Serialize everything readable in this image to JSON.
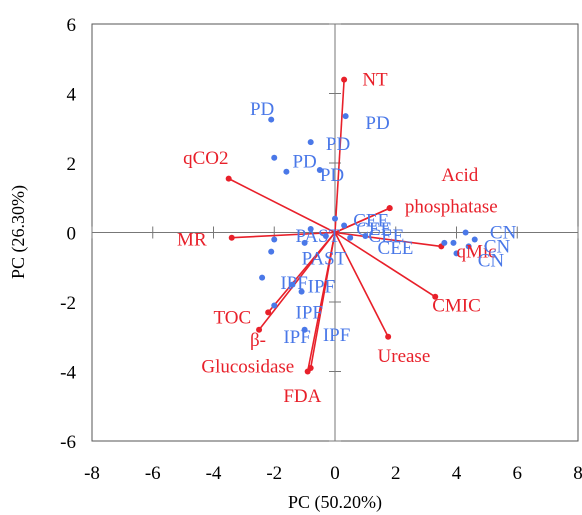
{
  "chart_data": {
    "type": "scatter",
    "subtype": "pca-biplot",
    "xlabel": "PC (50.20%)",
    "ylabel": "PC (26.30%)",
    "xlim": [
      -8,
      8
    ],
    "ylim": [
      -6,
      6
    ],
    "xticks": [
      -8,
      -6,
      -4,
      -2,
      0,
      2,
      4,
      6,
      8
    ],
    "yticks": [
      -6,
      -4,
      -2,
      0,
      2,
      4,
      6
    ],
    "grid": false,
    "colors": {
      "vectors": "#e8202a",
      "points": "#4a78e8"
    },
    "vectors": [
      {
        "name": "NT",
        "x": 0.3,
        "y": 4.4
      },
      {
        "name": "qCO2",
        "x": -3.5,
        "y": 1.55
      },
      {
        "name": "Acid",
        "x": 1.8,
        "y": 0.7
      },
      {
        "name": "phosphatase",
        "x": 1.8,
        "y": 0.7
      },
      {
        "name": "MR",
        "x": -3.4,
        "y": -0.15
      },
      {
        "name": "qMic",
        "x": 3.5,
        "y": -0.4
      },
      {
        "name": "CMIC",
        "x": 3.3,
        "y": -1.85
      },
      {
        "name": "TOC",
        "x": -2.2,
        "y": -2.3
      },
      {
        "name": "β-",
        "x": -2.5,
        "y": -2.8
      },
      {
        "name": "Glucosidase",
        "x": -0.9,
        "y": -4.0
      },
      {
        "name": "Urease",
        "x": 1.75,
        "y": -3.0
      },
      {
        "name": "FDA",
        "x": -0.8,
        "y": -3.9
      }
    ],
    "vector_labels": [
      {
        "text": "NT",
        "x": 0.9,
        "y": 4.4
      },
      {
        "text": "qCO2",
        "x": -5.0,
        "y": 2.15
      },
      {
        "text": "Acid",
        "x": 3.5,
        "y": 1.65
      },
      {
        "text": "phosphatase",
        "x": 2.3,
        "y": 0.75
      },
      {
        "text": "MR",
        "x": -5.2,
        "y": -0.2
      },
      {
        "text": "qMic",
        "x": 4.0,
        "y": -0.55
      },
      {
        "text": "CMIC",
        "x": 3.2,
        "y": -2.1
      },
      {
        "text": "TOC",
        "x": -4.0,
        "y": -2.45
      },
      {
        "text": "β-",
        "x": -2.8,
        "y": -3.1
      },
      {
        "text": "Glucosidase",
        "x": -4.4,
        "y": -3.85
      },
      {
        "text": "Urease",
        "x": 1.4,
        "y": -3.55
      },
      {
        "text": "FDA",
        "x": -1.7,
        "y": -4.7
      }
    ],
    "points": [
      {
        "x": -2.1,
        "y": 3.25
      },
      {
        "x": 0.35,
        "y": 3.35
      },
      {
        "x": -0.8,
        "y": 2.6
      },
      {
        "x": -2.0,
        "y": 2.15
      },
      {
        "x": -1.6,
        "y": 1.75
      },
      {
        "x": -0.5,
        "y": 1.8
      },
      {
        "x": 0.0,
        "y": 0.4
      },
      {
        "x": 0.3,
        "y": 0.2
      },
      {
        "x": -0.8,
        "y": 0.1
      },
      {
        "x": -0.3,
        "y": -0.1
      },
      {
        "x": 0.5,
        "y": -0.15
      },
      {
        "x": 1.0,
        "y": -0.1
      },
      {
        "x": -2.0,
        "y": -0.2
      },
      {
        "x": -1.0,
        "y": -0.3
      },
      {
        "x": -2.1,
        "y": -0.55
      },
      {
        "x": -2.4,
        "y": -1.3
      },
      {
        "x": -1.4,
        "y": -1.5
      },
      {
        "x": -1.1,
        "y": -1.7
      },
      {
        "x": -2.0,
        "y": -2.1
      },
      {
        "x": -1.0,
        "y": -2.8
      },
      {
        "x": 3.6,
        "y": -0.3
      },
      {
        "x": 3.9,
        "y": -0.3
      },
      {
        "x": 4.3,
        "y": 0.0
      },
      {
        "x": 4.6,
        "y": -0.2
      },
      {
        "x": 4.0,
        "y": -0.6
      },
      {
        "x": 4.4,
        "y": -0.4
      }
    ],
    "point_labels": [
      {
        "text": "PD",
        "x": -2.8,
        "y": 3.55
      },
      {
        "text": "PD",
        "x": 1.0,
        "y": 3.15
      },
      {
        "text": "PD",
        "x": -0.3,
        "y": 2.55
      },
      {
        "text": "PD",
        "x": -1.4,
        "y": 2.05
      },
      {
        "text": "PD",
        "x": -0.5,
        "y": 1.65
      },
      {
        "text": "CEE",
        "x": 0.6,
        "y": 0.35
      },
      {
        "text": "CEE",
        "x": 0.7,
        "y": 0.1
      },
      {
        "text": "CEE",
        "x": 1.1,
        "y": -0.1
      },
      {
        "text": "CEE",
        "x": 1.4,
        "y": -0.45
      },
      {
        "text": "PAST",
        "x": -1.3,
        "y": -0.1
      },
      {
        "text": "PAST",
        "x": -1.1,
        "y": -0.75
      },
      {
        "text": "IPF",
        "x": -1.8,
        "y": -1.45
      },
      {
        "text": "IPF",
        "x": -0.9,
        "y": -1.55
      },
      {
        "text": "IPF",
        "x": -1.3,
        "y": -2.3
      },
      {
        "text": "IPF",
        "x": -1.7,
        "y": -3.0
      },
      {
        "text": "IPF",
        "x": -0.4,
        "y": -2.95
      },
      {
        "text": "CN",
        "x": 5.1,
        "y": 0.0
      },
      {
        "text": "CN",
        "x": 4.9,
        "y": -0.4
      },
      {
        "text": "CN",
        "x": 4.7,
        "y": -0.8
      }
    ]
  }
}
